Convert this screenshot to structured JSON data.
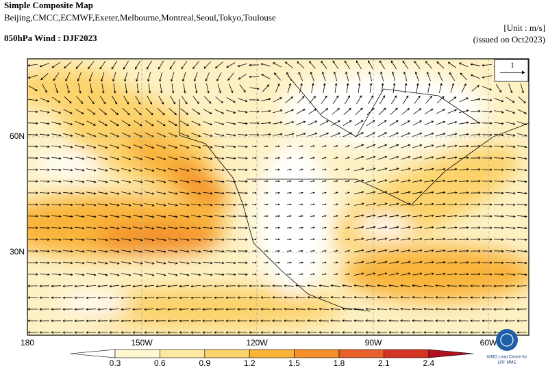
{
  "header": {
    "title": "Simple Composite Map",
    "models": "Beijing,CMCC,ECMWF,Exeter,Melbourne,Montreal,Seoul,Tokyo,Toulouse",
    "subtitle": "850hPa Wind : DJF2023",
    "unit": "[Unit : m/s]",
    "issued": "(issued on Oct2023)"
  },
  "map": {
    "lon_labels": [
      "180",
      "150W",
      "120W",
      "90W",
      "60W"
    ],
    "lat_labels": [
      "60N",
      "30N"
    ],
    "reference_vector": "1"
  },
  "colorbar": {
    "ticks": [
      "0.3",
      "0.6",
      "0.9",
      "1.2",
      "1.5",
      "1.8",
      "2.1",
      "2.4"
    ]
  },
  "logo": {
    "line1": "WMO Lead Centre for",
    "line2": "LRF MME"
  }
}
